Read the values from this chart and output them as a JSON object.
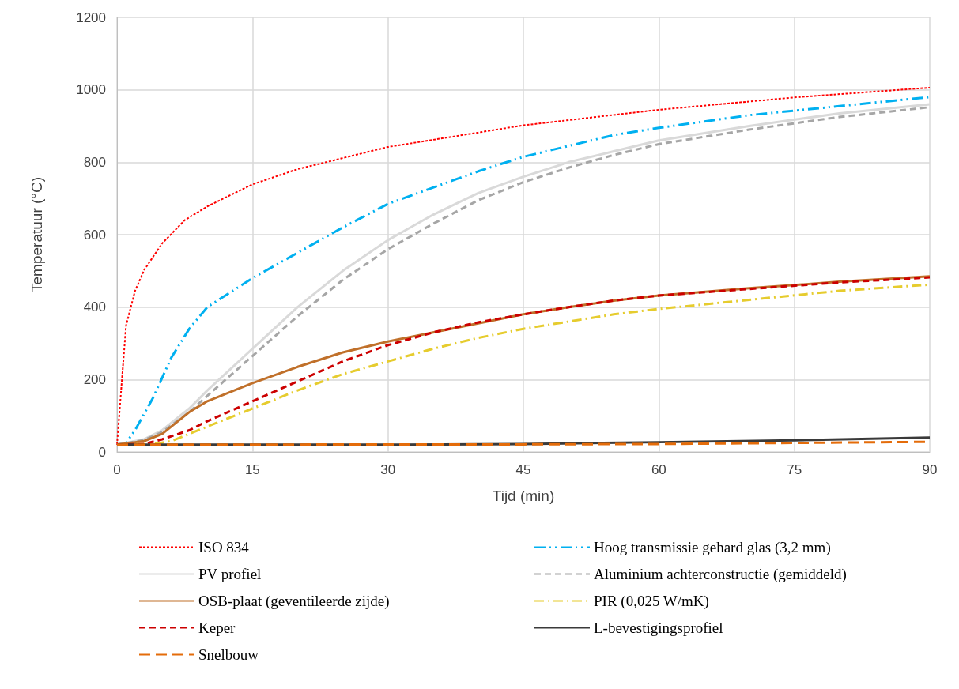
{
  "chart_data": {
    "type": "line",
    "xlabel": "Tijd (min)",
    "ylabel": "Temperatuur (°C)",
    "xlim": [
      0,
      90
    ],
    "xticks": [
      0,
      15,
      30,
      45,
      60,
      75,
      90
    ],
    "ylim": [
      0,
      1200
    ],
    "yticks": [
      0,
      200,
      400,
      600,
      800,
      1000,
      1200
    ],
    "grid": true,
    "legend": "bottom",
    "marker": "none",
    "series": [
      {
        "name": "ISO 834",
        "color": "#ff0000",
        "line_style": "dotted",
        "x": [
          0,
          1,
          2,
          3,
          5,
          7.5,
          10,
          15,
          20,
          30,
          45,
          60,
          75,
          90
        ],
        "values": [
          20,
          349,
          445,
          502,
          576,
          640,
          678,
          739,
          781,
          842,
          902,
          945,
          979,
          1006
        ]
      },
      {
        "name": "Hoog transmissie gehard glas (3,2 mm)",
        "color": "#00b0f0",
        "line_style": "dashdotdot",
        "x": [
          0,
          1,
          2,
          4,
          6,
          8,
          10,
          15,
          20,
          25,
          30,
          35,
          40,
          45,
          50,
          55,
          60,
          70,
          80,
          90
        ],
        "values": [
          20,
          25,
          60,
          150,
          260,
          340,
          400,
          480,
          550,
          620,
          685,
          730,
          775,
          815,
          845,
          875,
          895,
          930,
          955,
          980
        ]
      },
      {
        "name": "PV profiel",
        "color": "#d9d9d9",
        "line_style": "solid",
        "x": [
          0,
          3,
          5,
          8,
          10,
          15,
          20,
          25,
          30,
          35,
          40,
          45,
          50,
          55,
          60,
          70,
          80,
          90
        ],
        "values": [
          20,
          35,
          60,
          120,
          170,
          285,
          400,
          500,
          585,
          655,
          715,
          760,
          800,
          830,
          860,
          900,
          935,
          960
        ]
      },
      {
        "name": "Aluminium achterconstructie (gemiddeld)",
        "color": "#a6a6a6",
        "line_style": "dashed",
        "x": [
          0,
          3,
          5,
          8,
          10,
          15,
          20,
          25,
          30,
          35,
          40,
          45,
          50,
          55,
          60,
          70,
          80,
          90
        ],
        "values": [
          20,
          33,
          55,
          110,
          155,
          265,
          375,
          475,
          560,
          630,
          695,
          745,
          785,
          820,
          850,
          890,
          925,
          952
        ]
      },
      {
        "name": "OSB-plaat (geventileerde zijde)",
        "color": "#c0702a",
        "line_style": "solid",
        "x": [
          0,
          3,
          5,
          8,
          10,
          12,
          15,
          20,
          25,
          30,
          35,
          40,
          45,
          50,
          55,
          60,
          70,
          80,
          90
        ],
        "values": [
          20,
          30,
          50,
          110,
          140,
          160,
          190,
          235,
          275,
          305,
          330,
          355,
          380,
          400,
          418,
          432,
          452,
          470,
          485
        ]
      },
      {
        "name": "PIR (0,025 W/mK)",
        "color": "#e6cc2e",
        "line_style": "dashdot",
        "x": [
          0,
          4,
          6,
          8,
          10,
          15,
          20,
          25,
          30,
          35,
          40,
          45,
          50,
          55,
          60,
          70,
          80,
          90
        ],
        "values": [
          20,
          22,
          30,
          50,
          70,
          120,
          170,
          215,
          250,
          285,
          315,
          340,
          360,
          380,
          395,
          420,
          445,
          462
        ]
      },
      {
        "name": "Keper",
        "color": "#cc0000",
        "line_style": "dashed",
        "x": [
          0,
          3,
          5,
          8,
          10,
          15,
          20,
          25,
          30,
          35,
          40,
          45,
          50,
          55,
          60,
          70,
          80,
          90
        ],
        "values": [
          20,
          22,
          35,
          60,
          85,
          140,
          195,
          250,
          295,
          330,
          358,
          380,
          400,
          418,
          432,
          450,
          468,
          482
        ]
      },
      {
        "name": "L-bevestigingsprofiel",
        "color": "#3a3a3a",
        "line_style": "solid",
        "x": [
          0,
          30,
          45,
          60,
          75,
          90
        ],
        "values": [
          20,
          20,
          22,
          27,
          32,
          40
        ]
      },
      {
        "name": "Snelbouw",
        "color": "#e46c0a",
        "line_style": "longdash",
        "x": [
          0,
          45,
          60,
          75,
          90
        ],
        "values": [
          20,
          21,
          22,
          25,
          28
        ]
      }
    ]
  }
}
